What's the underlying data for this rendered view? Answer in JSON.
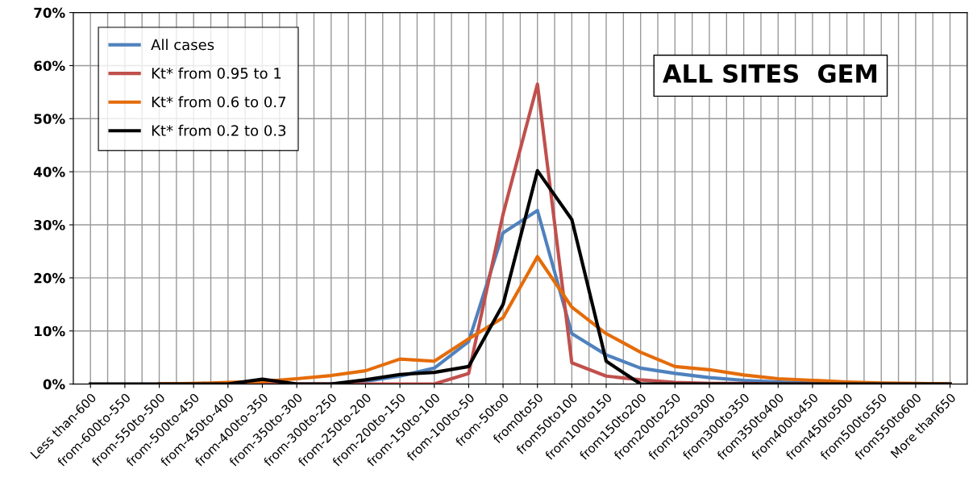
{
  "chart_data": {
    "type": "line",
    "title": "ALL SITES  GEM",
    "categories": [
      "Less than-600",
      "from-600to-550",
      "from-550to-500",
      "from-500to-450",
      "from-450to-400",
      "from-400to-350",
      "from-350to-300",
      "from-300to-250",
      "from-250to-200",
      "from-200to-150",
      "from-150to-100",
      "from-100to-50",
      "from-50to0",
      "from0to50",
      "from50to100",
      "from100to150",
      "from150to200",
      "from200to250",
      "from250to300",
      "from300to350",
      "from350to400",
      "from400to450",
      "from450to500",
      "from500to550",
      "from550to600",
      "More than650"
    ],
    "series": [
      {
        "name": "All cases",
        "color": "#4f81bd",
        "values": [
          null,
          null,
          null,
          null,
          null,
          null,
          null,
          0,
          0.5,
          1.5,
          3,
          8,
          28.5,
          32.7,
          9.5,
          5.5,
          3,
          2,
          1.2,
          0.7,
          0.4,
          0.2,
          0.1,
          null,
          null,
          null
        ]
      },
      {
        "name": "Kt* from 0.95 to 1",
        "color": "#c0504d",
        "values": [
          null,
          null,
          0,
          0,
          0,
          0,
          0,
          0,
          0,
          0,
          0,
          2,
          32,
          56.5,
          4,
          1.5,
          0.8,
          0.3,
          0.1,
          0.1,
          0,
          0,
          0,
          0,
          0,
          0
        ]
      },
      {
        "name": "Kt* from 0.6 to 0.7",
        "color": "#e46c0a",
        "values": [
          null,
          null,
          0,
          0.1,
          0.3,
          0.5,
          1,
          1.6,
          2.5,
          4.7,
          4.3,
          8.5,
          12.5,
          24,
          14.5,
          9.5,
          6,
          3.3,
          2.7,
          1.7,
          1,
          0.7,
          0.4,
          0.2,
          0.1,
          0
        ]
      },
      {
        "name": "Kt* from 0.2 to 0.3",
        "color": "#000000",
        "values": [
          0,
          0,
          0,
          0,
          0,
          0.9,
          0,
          0,
          0.8,
          1.8,
          2.2,
          3.3,
          15,
          40.2,
          31,
          4.3,
          0,
          0,
          0,
          0,
          0,
          0,
          0,
          0,
          0,
          0
        ]
      }
    ],
    "ylim": [
      0,
      70
    ],
    "yticks": [
      {
        "value": 0,
        "label": "0%"
      },
      {
        "value": 10,
        "label": "10%"
      },
      {
        "value": 20,
        "label": "20%"
      },
      {
        "value": 30,
        "label": "30%"
      },
      {
        "value": 40,
        "label": "40%"
      },
      {
        "value": 50,
        "label": "50%"
      },
      {
        "value": 60,
        "label": "60%"
      },
      {
        "value": 70,
        "label": "70%"
      }
    ],
    "grid": true,
    "legend": "top left",
    "marker": "none",
    "line_style": "solid"
  }
}
